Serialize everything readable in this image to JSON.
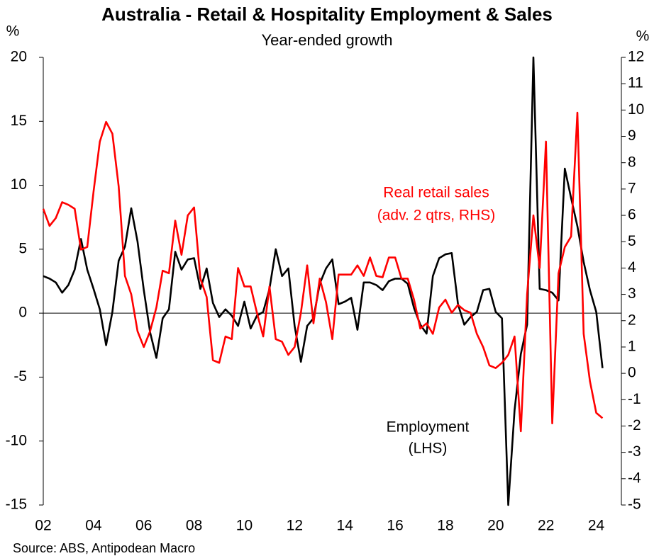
{
  "chart_data": {
    "type": "line",
    "title": "Australia - Retail & Hospitality Employment & Sales",
    "subtitle": "Year-ended growth",
    "y_unit": "%",
    "y2_unit": "%",
    "source": "Source: ABS, Antipodean Macro",
    "annotations": [
      {
        "text": "Real retail sales",
        "color": "#ff0000"
      },
      {
        "text": "(adv. 2 qtrs, RHS)",
        "color": "#ff0000"
      },
      {
        "text": "Employment",
        "color": "#000000"
      },
      {
        "text": "(LHS)",
        "color": "#000000"
      }
    ],
    "x": [
      2002,
      2002.25,
      2002.5,
      2002.75,
      2003,
      2003.25,
      2003.5,
      2003.75,
      2004,
      2004.25,
      2004.5,
      2004.75,
      2005,
      2005.25,
      2005.5,
      2005.75,
      2006,
      2006.25,
      2006.5,
      2006.75,
      2007,
      2007.25,
      2007.5,
      2007.75,
      2008,
      2008.25,
      2008.5,
      2008.75,
      2009,
      2009.25,
      2009.5,
      2009.75,
      2010,
      2010.25,
      2010.5,
      2010.75,
      2011,
      2011.25,
      2011.5,
      2011.75,
      2012,
      2012.25,
      2012.5,
      2012.75,
      2013,
      2013.25,
      2013.5,
      2013.75,
      2014,
      2014.25,
      2014.5,
      2014.75,
      2015,
      2015.25,
      2015.5,
      2015.75,
      2016,
      2016.25,
      2016.5,
      2016.75,
      2017,
      2017.25,
      2017.5,
      2017.75,
      2018,
      2018.25,
      2018.5,
      2018.75,
      2019,
      2019.25,
      2019.5,
      2019.75,
      2020,
      2020.25,
      2020.5,
      2020.75,
      2021,
      2021.25,
      2021.5,
      2021.75,
      2022,
      2022.25,
      2022.5,
      2022.75,
      2023,
      2023.25,
      2023.5,
      2023.75,
      2024,
      2024.25
    ],
    "series": [
      {
        "name": "Employment",
        "color": "#000000",
        "axis": "y",
        "values": [
          2.9,
          2.7,
          2.4,
          1.6,
          2.2,
          3.4,
          5.8,
          3.4,
          1.9,
          0.3,
          -2.5,
          0.1,
          4.1,
          5.2,
          8.2,
          5.6,
          1.8,
          -1.5,
          -3.5,
          -0.4,
          0.3,
          4.8,
          3.4,
          4.2,
          4.3,
          1.9,
          3.5,
          0.8,
          -0.3,
          0.3,
          -0.2,
          -1.0,
          0.9,
          -1.2,
          -0.2,
          0.1,
          1.9,
          5.0,
          2.9,
          3.5,
          -1.0,
          -3.8,
          -1.0,
          -0.4,
          2.3,
          3.5,
          4.2,
          0.7,
          0.9,
          1.2,
          -1.3,
          2.4,
          2.4,
          2.2,
          1.8,
          2.5,
          2.7,
          2.7,
          2.3,
          0.4,
          -0.9,
          -1.6,
          2.9,
          4.3,
          4.6,
          4.7,
          0.7,
          -0.9,
          -0.3,
          0.1,
          1.8,
          1.9,
          0.1,
          -0.4,
          -15,
          -7.6,
          -3.2,
          -0.9,
          20,
          1.9,
          1.8,
          1.6,
          1.0,
          11.3,
          9.0,
          6.8,
          4.0,
          1.8,
          0.1,
          -4.3
        ]
      },
      {
        "name": "Real retail sales",
        "color": "#ff0000",
        "axis": "y2",
        "values": [
          6.25,
          5.6,
          5.9,
          6.5,
          6.4,
          6.25,
          4.7,
          4.8,
          6.9,
          8.8,
          9.55,
          9.1,
          7.1,
          3.7,
          3.0,
          1.6,
          1.0,
          1.6,
          2.5,
          3.9,
          3.8,
          5.8,
          4.5,
          6.0,
          6.3,
          3.6,
          2.9,
          0.5,
          0.4,
          1.4,
          1.3,
          4.0,
          3.3,
          3.3,
          2.3,
          1.4,
          3.3,
          1.3,
          1.2,
          0.7,
          1.0,
          2.3,
          4.1,
          1.9,
          3.6,
          2.7,
          1.3,
          3.75,
          3.75,
          3.75,
          4.1,
          3.7,
          4.4,
          3.7,
          3.65,
          4.4,
          4.4,
          3.6,
          3.6,
          2.8,
          1.7,
          1.9,
          1.5,
          2.5,
          2.8,
          2.3,
          2.6,
          2.4,
          2.3,
          1.5,
          1.0,
          0.3,
          0.2,
          0.4,
          0.7,
          1.4,
          -2.2,
          3.0,
          6.0,
          4.0,
          8.8,
          -1.9,
          3.8,
          4.8,
          5.2,
          9.9,
          1.5,
          -0.3,
          -1.5,
          -1.7
        ]
      }
    ],
    "xlim": [
      2002,
      2025
    ],
    "xticks": [
      {
        "value": 2002,
        "label": "02"
      },
      {
        "value": 2004,
        "label": "04"
      },
      {
        "value": 2006,
        "label": "06"
      },
      {
        "value": 2008,
        "label": "08"
      },
      {
        "value": 2010,
        "label": "10"
      },
      {
        "value": 2012,
        "label": "12"
      },
      {
        "value": 2014,
        "label": "14"
      },
      {
        "value": 2016,
        "label": "16"
      },
      {
        "value": 2018,
        "label": "18"
      },
      {
        "value": 2020,
        "label": "20"
      },
      {
        "value": 2022,
        "label": "22"
      },
      {
        "value": 2024,
        "label": "24"
      }
    ],
    "ylim": [
      -15,
      20
    ],
    "yticks": [
      -15,
      -10,
      -5,
      0,
      5,
      10,
      15,
      20
    ],
    "y2lim": [
      -5,
      12
    ],
    "y2ticks": [
      -5,
      -4,
      -3,
      -2,
      -1,
      0,
      1,
      2,
      3,
      4,
      5,
      6,
      7,
      8,
      9,
      10,
      11,
      12
    ],
    "zero_line": true
  }
}
